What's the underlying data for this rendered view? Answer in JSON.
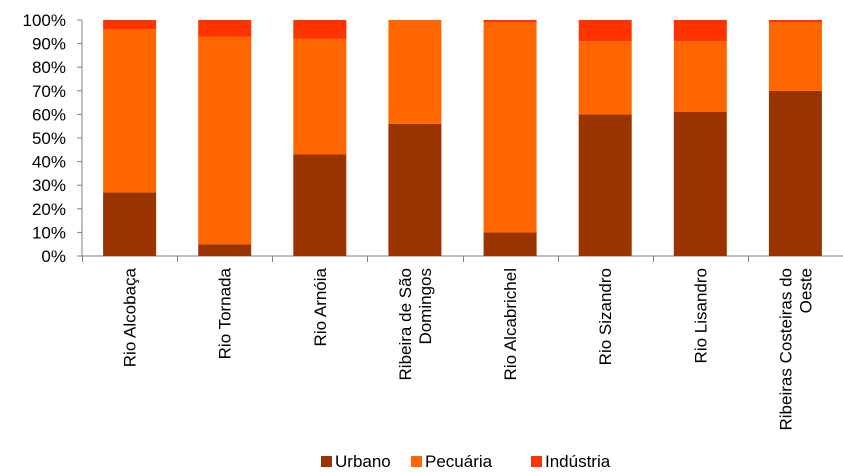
{
  "chart_data": {
    "type": "bar",
    "stacked": true,
    "percent": true,
    "title": "",
    "xlabel": "",
    "ylabel": "",
    "ylim": [
      0,
      100
    ],
    "yticks": [
      "0%",
      "10%",
      "20%",
      "30%",
      "40%",
      "50%",
      "60%",
      "70%",
      "80%",
      "90%",
      "100%"
    ],
    "grid": false,
    "legend_position": "bottom",
    "categories": [
      [
        "Rio Alcobaça"
      ],
      [
        "Rio Tornada"
      ],
      [
        "Rio Arnóia"
      ],
      [
        "Ribeira de São",
        "Domingos"
      ],
      [
        "Rio Alcabrichel"
      ],
      [
        "Rio Sizandro"
      ],
      [
        "Rio Lisandro"
      ],
      [
        "Ribeiras Costeiras do",
        "Oeste"
      ]
    ],
    "series": [
      {
        "name": "Urbano",
        "color": "#993300",
        "values": [
          27,
          5,
          43,
          56,
          10,
          60,
          61,
          70
        ]
      },
      {
        "name": "Pecuária",
        "color": "#FF6600",
        "values": [
          69,
          88,
          49,
          44,
          89,
          31,
          30,
          29
        ]
      },
      {
        "name": "Indústria",
        "color": "#FF3300",
        "values": [
          4,
          7,
          8,
          0,
          1,
          9,
          9,
          1
        ]
      }
    ]
  }
}
